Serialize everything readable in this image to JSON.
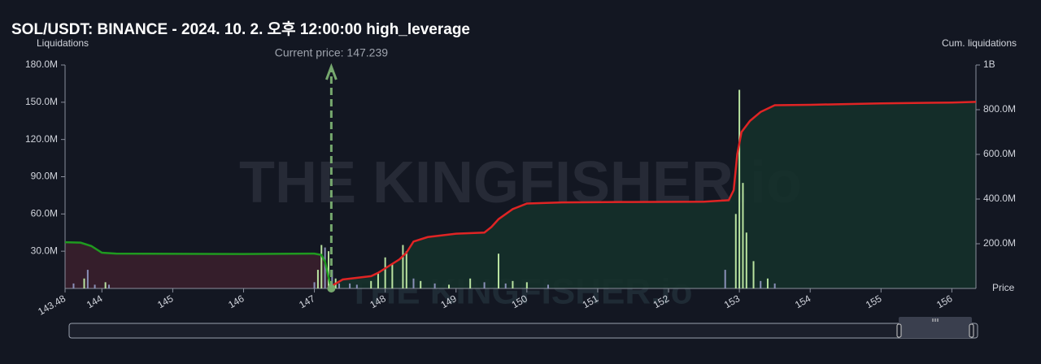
{
  "chart_data": {
    "type": "liquidation",
    "title": "SOL/USDT: BINANCE - 2024. 10. 2. 오후 12:00:00 high_leverage",
    "y_label": "Liquidations",
    "y2_label": "Cum. liquidations",
    "x_label": "Price",
    "watermark": "THE KINGFISHER.io",
    "current_price": 147.239,
    "current_price_label": "Current price: 147.239",
    "current_price_color": "#76a86e",
    "xlim": [
      143.48,
      156.34
    ],
    "xticks": [
      143.48,
      144,
      145,
      146,
      147,
      148,
      149,
      150,
      151,
      152,
      153,
      154,
      155,
      156
    ],
    "ylim": [
      0,
      180000000
    ],
    "yticks": [
      {
        "value": 30000000,
        "label": "30.0M"
      },
      {
        "value": 60000000,
        "label": "60.0M"
      },
      {
        "value": 90000000,
        "label": "90.0M"
      },
      {
        "value": 120000000,
        "label": "120.0M"
      },
      {
        "value": 150000000,
        "label": "150.0M"
      },
      {
        "value": 180000000,
        "label": "180.0M"
      }
    ],
    "y2lim": [
      0,
      1000000000
    ],
    "y2ticks": [
      {
        "value": 200000000,
        "label": "200.0M"
      },
      {
        "value": 400000000,
        "label": "400.0M"
      },
      {
        "value": 600000000,
        "label": "600.0M"
      },
      {
        "value": 800000000,
        "label": "800.0M"
      },
      {
        "value": 1000000000,
        "label": "1B"
      }
    ],
    "series": [
      {
        "type": "bar",
        "color": "#b9e3a0",
        "x": [
          143.75,
          144.05,
          147.05,
          147.1,
          147.2,
          147.3,
          147.8,
          147.9,
          148.0,
          148.1,
          148.25,
          148.3,
          148.5,
          148.9,
          149.2,
          149.6,
          149.8,
          150.0,
          152.95,
          153.0,
          153.05,
          153.1,
          153.2,
          153.4
        ],
        "values": [
          8000000,
          5000000,
          15000000,
          35000000,
          30000000,
          8000000,
          6000000,
          12000000,
          25000000,
          20000000,
          35000000,
          30000000,
          6000000,
          3000000,
          8000000,
          28000000,
          6000000,
          5000000,
          60000000,
          160000000,
          85000000,
          45000000,
          22000000,
          8000000
        ]
      },
      {
        "type": "bar",
        "color": "#8a90b8",
        "x": [
          143.6,
          143.8,
          143.9,
          144.1,
          147.0,
          147.15,
          147.25,
          147.35,
          147.5,
          147.6,
          148.4,
          148.7,
          149.4,
          149.7,
          150.3,
          152.8,
          153.3,
          153.5
        ],
        "values": [
          4000000,
          15000000,
          3000000,
          3000000,
          5000000,
          33000000,
          15000000,
          4000000,
          4000000,
          3000000,
          8000000,
          4000000,
          5000000,
          4000000,
          3000000,
          15000000,
          6000000,
          4000000
        ]
      },
      {
        "type": "line",
        "axis": "y2",
        "color": "#1f9a1f",
        "fill": "#3a1f2c",
        "x": [
          143.48,
          143.7,
          143.85,
          144.0,
          144.2,
          146.0,
          147.0,
          147.1,
          147.15,
          147.2,
          147.239
        ],
        "values": [
          207000000,
          205000000,
          190000000,
          160000000,
          156000000,
          154000000,
          156000000,
          150000000,
          120000000,
          50000000,
          0
        ]
      },
      {
        "type": "line",
        "axis": "y2",
        "color": "#e02424",
        "fill": "#15302a",
        "x": [
          147.239,
          147.4,
          147.8,
          147.9,
          148.0,
          148.2,
          148.3,
          148.4,
          148.6,
          149.0,
          149.4,
          149.5,
          149.6,
          149.8,
          150.0,
          150.5,
          151.5,
          152.5,
          152.85,
          152.92,
          152.97,
          153.03,
          153.15,
          153.3,
          153.5,
          154.0,
          155.0,
          156.0,
          156.34
        ],
        "values": [
          10000000,
          40000000,
          55000000,
          70000000,
          90000000,
          130000000,
          160000000,
          210000000,
          230000000,
          245000000,
          250000000,
          275000000,
          310000000,
          355000000,
          380000000,
          385000000,
          387000000,
          388000000,
          395000000,
          440000000,
          600000000,
          700000000,
          750000000,
          790000000,
          820000000,
          822000000,
          828000000,
          832000000,
          835000000
        ]
      }
    ]
  }
}
